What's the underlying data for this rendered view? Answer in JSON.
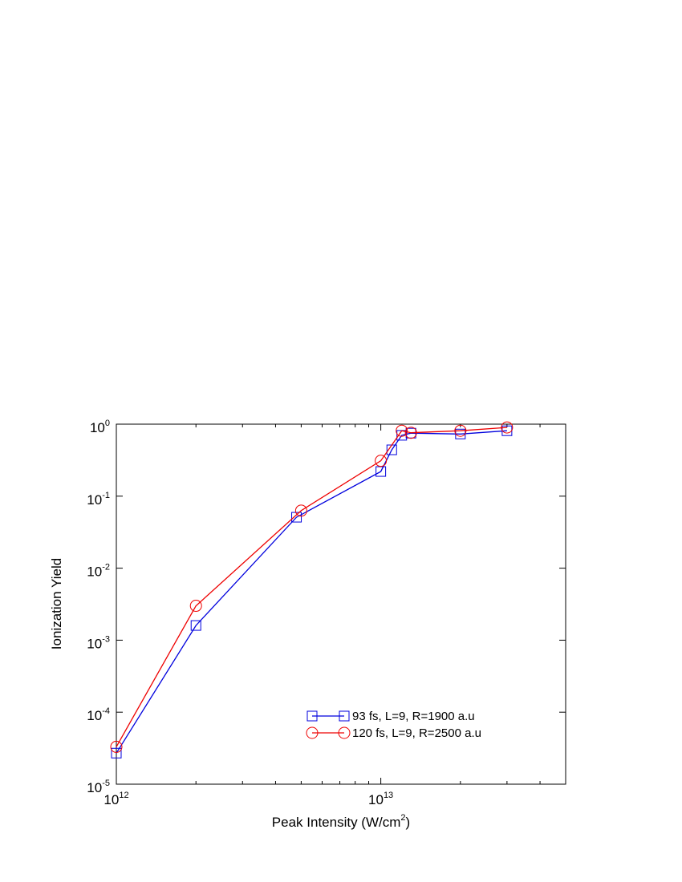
{
  "chart_data": {
    "type": "line",
    "x_label": "Peak Intensity (W/cm^2)",
    "y_label": "Ionization Yield",
    "log_x": true,
    "log_y": true,
    "xlim": [
      1000000000000.0,
      50000000000000.0
    ],
    "ylim": [
      1e-05,
      1
    ],
    "xticks": [
      {
        "value": 1000000000000.0,
        "label": "10^12"
      },
      {
        "value": 10000000000000.0,
        "label": "10^13"
      }
    ],
    "yticks": [
      {
        "value": 1e-05,
        "label": "10^-5"
      },
      {
        "value": 0.0001,
        "label": "10^-4"
      },
      {
        "value": 0.001,
        "label": "10^-3"
      },
      {
        "value": 0.01,
        "label": "10^-2"
      },
      {
        "value": 0.1,
        "label": "10^-1"
      },
      {
        "value": 1,
        "label": "10^0"
      }
    ],
    "x_minor_ticks": true,
    "legend": "lower right",
    "series": [
      {
        "name": "93 fs, L=9, R=1900 a.u",
        "color": "#0000dd",
        "marker": "square",
        "x": [
          1000000000000.0,
          2000000000000.0,
          4800000000000.0,
          10000000000000.0,
          11000000000000.0,
          12000000000000.0,
          13000000000000.0,
          20000000000000.0,
          30000000000000.0
        ],
        "values": [
          2.7e-05,
          0.0016,
          0.051,
          0.22,
          0.44,
          0.7,
          0.75,
          0.73,
          0.81
        ]
      },
      {
        "name": "120 fs, L=9, R=2500 a.u",
        "color": "#ee0000",
        "marker": "circle",
        "x": [
          1000000000000.0,
          2000000000000.0,
          5000000000000.0,
          10000000000000.0,
          12000000000000.0,
          13000000000000.0,
          20000000000000.0,
          30000000000000.0
        ],
        "values": [
          3.3e-05,
          0.003,
          0.063,
          0.31,
          0.81,
          0.76,
          0.81,
          0.9
        ]
      }
    ]
  }
}
